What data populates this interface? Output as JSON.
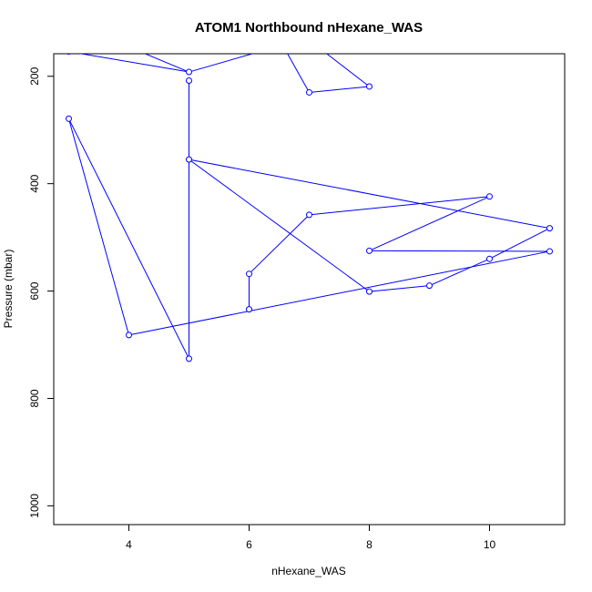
{
  "chart_data": {
    "type": "line",
    "title": "ATOM1 Northbound nHexane_WAS",
    "xlabel": "nHexane_WAS",
    "ylabel": "Pressure (mbar)",
    "xlim": [
      2.75,
      11.25
    ],
    "ylim": [
      1035,
      158
    ],
    "y_reversed": true,
    "xticks": [
      4,
      6,
      8,
      10
    ],
    "yticks": [
      200,
      400,
      600,
      800,
      1000
    ],
    "grid": false,
    "legend": "none",
    "series": [
      {
        "color": "#0000ff",
        "markers": true,
        "points": [
          {
            "x": 3,
            "y": 154
          },
          {
            "x": 5,
            "y": 192
          },
          {
            "x": 5,
            "y": 208
          },
          {
            "x": 5,
            "y": 726
          },
          {
            "x": 3,
            "y": 279
          },
          {
            "x": 4,
            "y": 682
          },
          {
            "x": 11,
            "y": 526
          },
          {
            "x": 8,
            "y": 525
          },
          {
            "x": 10,
            "y": 424
          },
          {
            "x": 7,
            "y": 458
          },
          {
            "x": 6,
            "y": 568
          },
          {
            "x": 6,
            "y": 634
          },
          {
            "x": 6.3,
            "y": 150
          },
          {
            "x": 6.6,
            "y": 150
          },
          {
            "x": 7,
            "y": 230
          },
          {
            "x": 8,
            "y": 219
          },
          {
            "x": 5,
            "y": 355
          },
          {
            "x": 11,
            "y": 483
          },
          {
            "x": 10,
            "y": 540
          },
          {
            "x": 9,
            "y": 590
          },
          {
            "x": 8,
            "y": 601
          }
        ],
        "segments": [
          [
            [
              3,
              154
            ],
            [
              5,
              192
            ]
          ],
          [
            [
              4.1,
              150
            ],
            [
              5,
              192
            ]
          ],
          [
            [
              5,
              192
            ],
            [
              6.3,
              150
            ]
          ],
          [
            [
              6.6,
              150
            ],
            [
              7,
              230
            ]
          ],
          [
            [
              7,
              230
            ],
            [
              8,
              219
            ]
          ],
          [
            [
              8,
              219
            ],
            [
              7.2,
              150
            ]
          ],
          [
            [
              5,
              208
            ],
            [
              5,
              726
            ]
          ],
          [
            [
              5,
              726
            ],
            [
              3,
              279
            ]
          ],
          [
            [
              3,
              279
            ],
            [
              4,
              682
            ]
          ],
          [
            [
              4,
              682
            ],
            [
              11,
              526
            ]
          ],
          [
            [
              11,
              526
            ],
            [
              8,
              525
            ]
          ],
          [
            [
              8,
              525
            ],
            [
              10,
              424
            ]
          ],
          [
            [
              10,
              424
            ],
            [
              7,
              458
            ]
          ],
          [
            [
              7,
              458
            ],
            [
              6,
              568
            ]
          ],
          [
            [
              6,
              568
            ],
            [
              6,
              634
            ]
          ],
          [
            [
              5,
              355
            ],
            [
              11,
              483
            ]
          ],
          [
            [
              11,
              483
            ],
            [
              10,
              540
            ]
          ],
          [
            [
              10,
              540
            ],
            [
              9,
              590
            ]
          ],
          [
            [
              9,
              590
            ],
            [
              8,
              601
            ]
          ],
          [
            [
              8,
              601
            ],
            [
              5,
              355
            ]
          ]
        ]
      }
    ]
  }
}
